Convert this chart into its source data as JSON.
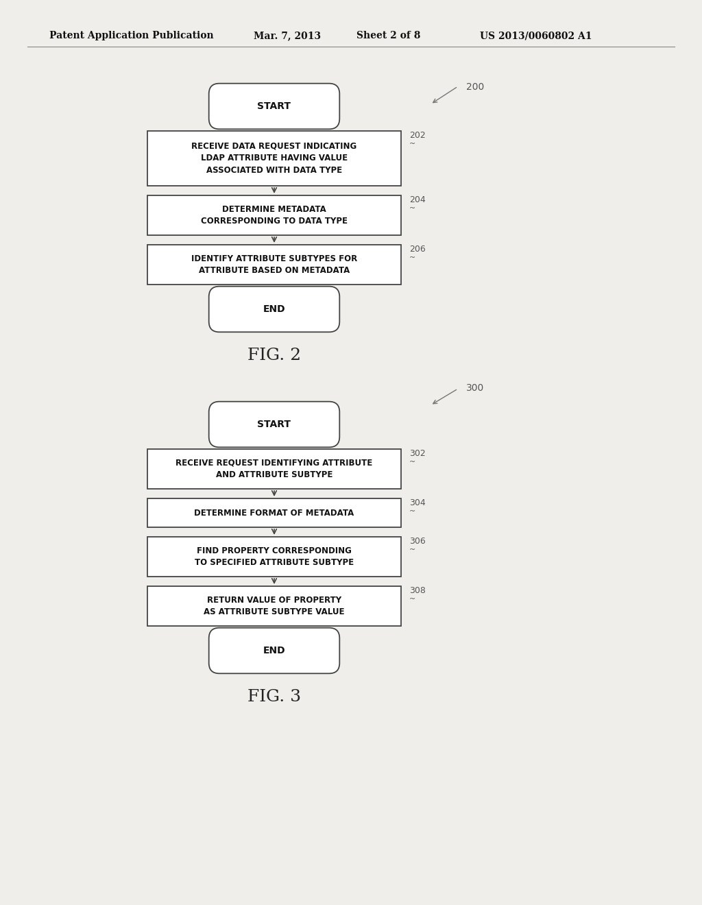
{
  "bg_color": "#f0eeeb",
  "header_text": "Patent Application Publication",
  "header_date": "Mar. 7, 2013",
  "header_sheet": "Sheet 2 of 8",
  "header_patent": "US 2013/0060802 A1",
  "fig2_label": "200",
  "fig2_caption": "FIG. 2",
  "fig3_label": "300",
  "fig3_caption": "FIG. 3",
  "box_edge_color": "#444444",
  "text_color": "#111111",
  "arrow_color": "#444444",
  "tag_color": "#555555",
  "font_size_box": 8.5,
  "font_size_header": 10,
  "font_size_tag": 9,
  "font_size_caption": 18,
  "fig2_nodes": [
    {
      "type": "stadium",
      "label": "START",
      "tag": null
    },
    {
      "type": "rect",
      "label": "RECEIVE DATA REQUEST INDICATING\nLDAP ATTRIBUTE HAVING VALUE\nASSOCIATED WITH DATA TYPE",
      "tag": "202"
    },
    {
      "type": "rect",
      "label": "DETERMINE METADATA\nCORRESPONDING TO DATA TYPE",
      "tag": "204"
    },
    {
      "type": "rect",
      "label": "IDENTIFY ATTRIBUTE SUBTYPES FOR\nATTRIBUTE BASED ON METADATA",
      "tag": "206"
    },
    {
      "type": "stadium",
      "label": "END",
      "tag": null
    }
  ],
  "fig3_nodes": [
    {
      "type": "stadium",
      "label": "START",
      "tag": null
    },
    {
      "type": "rect",
      "label": "RECEIVE REQUEST IDENTIFYING ATTRIBUTE\nAND ATTRIBUTE SUBTYPE",
      "tag": "302"
    },
    {
      "type": "rect",
      "label": "DETERMINE FORMAT OF METADATA",
      "tag": "304"
    },
    {
      "type": "rect",
      "label": "FIND PROPERTY CORRESPONDING\nTO SPECIFIED ATTRIBUTE SUBTYPE",
      "tag": "306"
    },
    {
      "type": "rect",
      "label": "RETURN VALUE OF PROPERTY\nAS ATTRIBUTE SUBTYPE VALUE",
      "tag": "308"
    },
    {
      "type": "stadium",
      "label": "END",
      "tag": null
    }
  ]
}
